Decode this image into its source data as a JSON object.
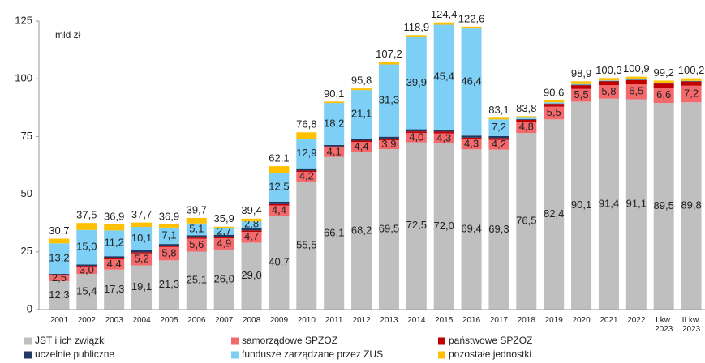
{
  "chart_data": {
    "type": "bar",
    "stacked": true,
    "unit_label": "mld zł",
    "categories": [
      "2001",
      "2002",
      "2003",
      "2004",
      "2005",
      "2006",
      "2007",
      "2008",
      "2009",
      "2010",
      "2011",
      "2012",
      "2013",
      "2014",
      "2015",
      "2016",
      "2017",
      "2018",
      "2019",
      "2020",
      "2021",
      "2022",
      "I kw. 2023",
      "II kw. 2023"
    ],
    "ylim": [
      0,
      125
    ],
    "yticks": [
      0,
      25,
      50,
      75,
      100,
      125
    ],
    "series": [
      {
        "name": "JST i ich związki",
        "color": "#bfbfbf",
        "values": [
          12.3,
          15.4,
          17.3,
          19.1,
          21.3,
          25.1,
          26.0,
          29.0,
          40.7,
          55.5,
          66.1,
          68.2,
          69.5,
          72.5,
          72.0,
          69.4,
          69.3,
          76.5,
          82.4,
          90.1,
          91.4,
          91.1,
          89.5,
          89.8
        ],
        "value_labels": [
          "12,3",
          "15,4",
          "17,3",
          "19,1",
          "21,3",
          "25,1",
          "26,0",
          "29,0",
          "40,7",
          "55,5",
          "66,1",
          "68,2",
          "69,5",
          "72,5",
          "72,0",
          "69,4",
          "69,3",
          "76,5",
          "82,4",
          "90,1",
          "91,4",
          "91,1",
          "89,5",
          "89,8"
        ]
      },
      {
        "name": "samorządowe SPZOZ",
        "color": "#f4696b",
        "values": [
          2.5,
          3.0,
          4.4,
          5.2,
          5.8,
          5.6,
          4.9,
          4.7,
          4.4,
          4.2,
          4.1,
          4.4,
          3.9,
          4.0,
          4.3,
          4.3,
          4.2,
          4.8,
          5.5,
          5.5,
          5.8,
          6.5,
          6.6,
          7.2
        ],
        "value_labels": [
          "2,5",
          "3,0",
          "4,4",
          "5,2",
          "5,8",
          "5,6",
          "4,9",
          "4,7",
          "4,4",
          "4,2",
          "4,1",
          "4,4",
          "3,9",
          "4,0",
          "4,3",
          "4,3",
          "4,2",
          "4,8",
          "5,5",
          "5,5",
          "5,8",
          "6,5",
          "6,6",
          "7,2"
        ]
      },
      {
        "name": "państwowe SPZOZ",
        "color": "#c00000",
        "values": [
          0.4,
          0.5,
          0.6,
          0.5,
          0.4,
          0.5,
          0.5,
          0.6,
          0.6,
          0.5,
          0.5,
          0.6,
          0.7,
          0.7,
          0.8,
          0.8,
          0.8,
          0.9,
          1.2,
          1.6,
          1.7,
          1.8,
          1.8,
          1.8
        ]
      },
      {
        "name": "uczelnie publiczne",
        "color": "#1f3864",
        "values": [
          0.3,
          0.6,
          0.8,
          0.9,
          0.9,
          1.0,
          1.0,
          1.1,
          1.0,
          1.0,
          0.6,
          0.8,
          0.8,
          0.9,
          0.9,
          0.9,
          0.9,
          0.3,
          0.2,
          0.2,
          0.2,
          0.2,
          0.2,
          0.2
        ]
      },
      {
        "name": "fundusze zarządzane przez ZUS",
        "color": "#7dcff5",
        "values": [
          13.2,
          15.0,
          11.2,
          10.1,
          7.1,
          5.1,
          2.7,
          2.8,
          12.5,
          12.9,
          18.2,
          21.1,
          31.3,
          39.9,
          45.4,
          46.4,
          7.2,
          0.6,
          0.5,
          0.3,
          0.2,
          0.2,
          0.1,
          0.1
        ],
        "value_labels": [
          "13,2",
          "15,0",
          "11,2",
          "10,1",
          "7,1",
          "5,1",
          "2,7",
          "2,8",
          "12,5",
          "12,9",
          "18,2",
          "21,1",
          "31,3",
          "39,9",
          "45,4",
          "46,4",
          "7,2",
          null,
          null,
          null,
          null,
          null,
          null,
          null
        ]
      },
      {
        "name": "pozostałe jednostki",
        "color": "#ffc000",
        "values": [
          2.0,
          3.0,
          2.6,
          1.9,
          1.4,
          2.4,
          0.8,
          1.2,
          2.9,
          2.7,
          0.6,
          0.7,
          1.0,
          0.9,
          1.0,
          0.8,
          0.7,
          0.7,
          0.8,
          1.2,
          1.0,
          1.1,
          1.0,
          1.1
        ]
      }
    ],
    "totals": [
      30.7,
      37.5,
      36.9,
      37.7,
      36.9,
      39.7,
      35.9,
      39.4,
      62.1,
      76.8,
      90.1,
      95.8,
      107.2,
      118.9,
      124.4,
      122.6,
      83.1,
      83.8,
      90.6,
      98.9,
      100.3,
      100.9,
      99.2,
      100.2
    ],
    "total_labels": [
      "30,7",
      "37,5",
      "36,9",
      "37,7",
      "36,9",
      "39,7",
      "35,9",
      "39,4",
      "62,1",
      "76,8",
      "90,1",
      "95,8",
      "107,2",
      "118,9",
      "124,4",
      "122,6",
      "83,1",
      "83,8",
      "90,6",
      "98,9",
      "100,3",
      "100,9",
      "99,2",
      "100,2"
    ],
    "legend": "bottom"
  }
}
